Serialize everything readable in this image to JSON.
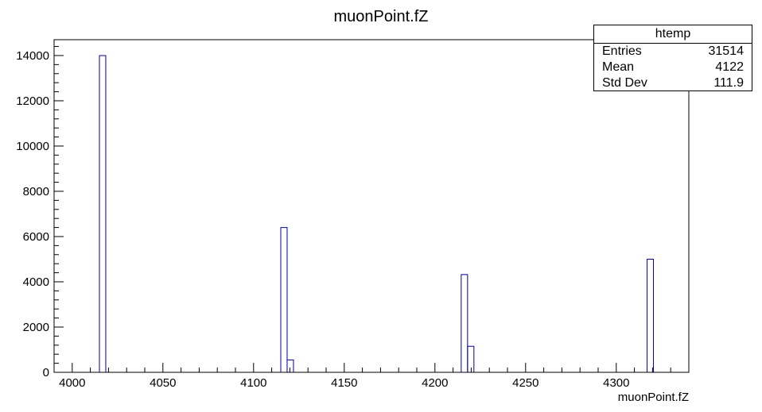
{
  "chart_data": {
    "type": "bar",
    "title": "muonPoint.fZ",
    "xlabel": "muonPoint.fZ",
    "ylabel": "",
    "xlim": [
      3990,
      4340
    ],
    "ylim": [
      0,
      14700
    ],
    "x_ticks": [
      4000,
      4050,
      4100,
      4150,
      4200,
      4250,
      4300
    ],
    "y_ticks": [
      0,
      2000,
      4000,
      6000,
      8000,
      10000,
      12000,
      14000
    ],
    "grid": false,
    "bin_width": 3.5,
    "bins": [
      {
        "x0": 4015.0,
        "value": 14000
      },
      {
        "x0": 4115.0,
        "value": 6400
      },
      {
        "x0": 4118.5,
        "value": 550
      },
      {
        "x0": 4214.5,
        "value": 4320
      },
      {
        "x0": 4218.0,
        "value": 1150
      },
      {
        "x0": 4317.0,
        "value": 5000
      }
    ],
    "colors": {
      "line": "#000099",
      "axis": "#000000"
    },
    "stats": {
      "name": "htemp",
      "entries_label": "Entries",
      "entries": "31514",
      "mean_label": "Mean",
      "mean": "4122",
      "stddev_label": "Std Dev",
      "stddev": "111.9"
    }
  }
}
